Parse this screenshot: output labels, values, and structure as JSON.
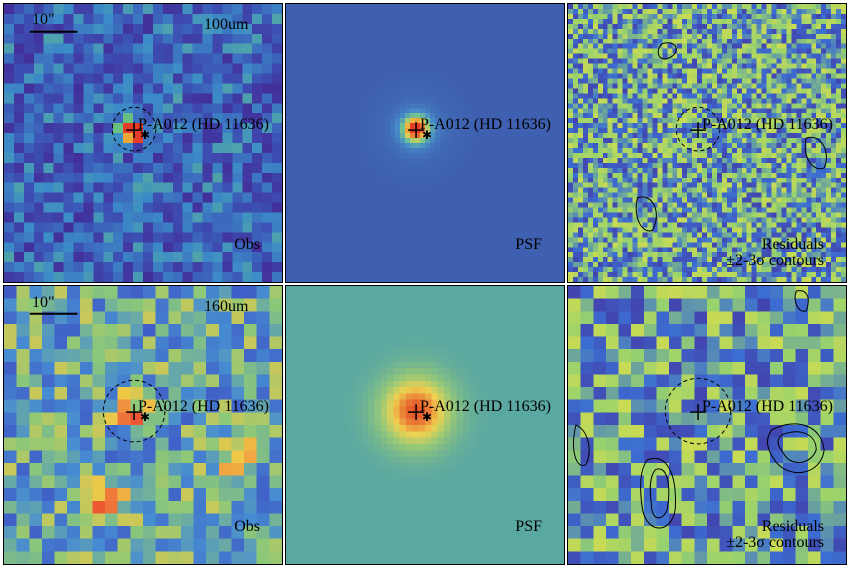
{
  "panels": [
    {
      "id": "p1",
      "row": 0,
      "col": 0,
      "colormap": "obs100",
      "seed": 11,
      "source": "peak-bright",
      "scale_label": "10\"",
      "band_label": "100um",
      "corner_label": "Obs",
      "target_label": "P-A012 (HD 11636)"
    },
    {
      "id": "p2",
      "row": 0,
      "col": 1,
      "colormap": "psf100",
      "seed": 0,
      "source": "psf-sharp",
      "target_label": "P-A012 (HD 11636)",
      "corner_label": "PSF"
    },
    {
      "id": "p3",
      "row": 0,
      "col": 2,
      "colormap": "resid",
      "seed": 29,
      "source": "none",
      "target_label": "P-A012 (HD 11636)",
      "corner_label_1": "Residuals",
      "corner_label_2": "±2-3σ contours"
    },
    {
      "id": "p4",
      "row": 1,
      "col": 0,
      "colormap": "obs160",
      "seed": 53,
      "source": "peak-soft",
      "scale_label": "10\"",
      "band_label": "160um",
      "corner_label": "Obs",
      "target_label": "P-A012 (HD 11636)"
    },
    {
      "id": "p5",
      "row": 1,
      "col": 1,
      "colormap": "psf160",
      "seed": 0,
      "source": "psf-broad",
      "target_label": "P-A012 (HD 11636)",
      "corner_label": "PSF"
    },
    {
      "id": "p6",
      "row": 1,
      "col": 2,
      "colormap": "resid",
      "seed": 71,
      "source": "none",
      "target_label": "P-A012 (HD 11636)",
      "corner_label_1": "Residuals",
      "corner_label_2": "±2-3σ contours"
    }
  ],
  "colors": {
    "obs100_low": "#4a2c9a",
    "obs100_mid": "#3f7fc8",
    "obs160_low": "#3a57c4",
    "obs160_high": "#e8452c",
    "psf_bg_100": "#3f5fb0",
    "psf_bg_160": "#5aa8a2",
    "resid_mid": "#9fd16a"
  }
}
